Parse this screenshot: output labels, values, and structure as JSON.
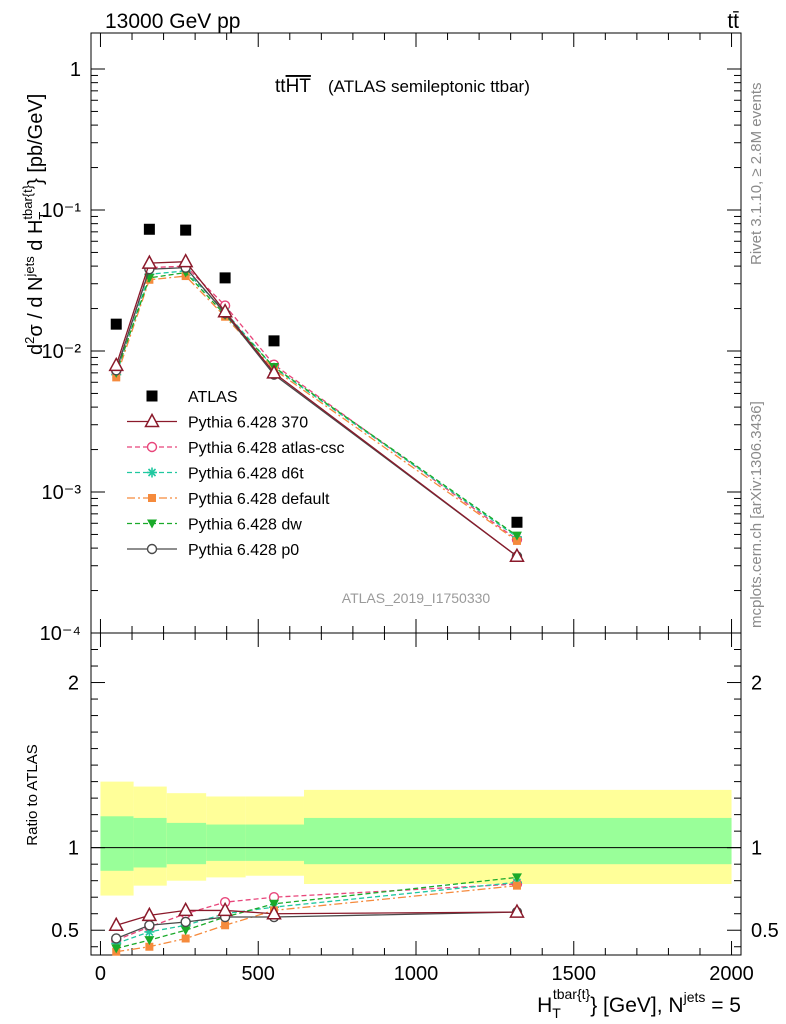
{
  "header": {
    "energy_label": "13000 GeV pp",
    "process_label": "tt̄",
    "title_main": "tt",
    "title_over": "HT",
    "title_paren": "(ATLAS semileptonic ttbar)",
    "analysis_id": "ATLAS_2019_I1750330",
    "side_top": "Rivet 3.1.10, ≥ 2.8M events",
    "side_bottom": "mcplots.cern.ch [arXiv:1306.3436]"
  },
  "colors": {
    "data": "#000000",
    "p370": "#8b1a2b",
    "atlas_csc": "#e8457a",
    "d6t": "#20c8a0",
    "default": "#f58a3c",
    "dw": "#1aaa2a",
    "p0": "#4a4a4a",
    "band_outer": "#ffff99",
    "band_inner": "#99ff99"
  },
  "chart_data": [
    {
      "type": "scatter",
      "panel": "main",
      "yscale": "log",
      "ylabel": "d²σ / d Nʲᵉᵗˢ d H_T^{tbar{t}} [pb/GeV]",
      "xlim": [
        -30,
        2030
      ],
      "ylim": [
        0.0001,
        1.8
      ],
      "yticks": [
        "10⁻⁴",
        "10⁻³",
        "10⁻²",
        "10⁻¹",
        "1"
      ],
      "legend_position": "lower-left",
      "x": [
        50,
        155,
        270,
        395,
        550,
        1320
      ],
      "series": [
        {
          "name": "ATLAS",
          "key": "data",
          "values": [
            0.0155,
            0.073,
            0.072,
            0.033,
            0.0118,
            0.00061
          ]
        },
        {
          "name": "Pythia 6.428 370",
          "key": "p370",
          "values": [
            0.0079,
            0.042,
            0.043,
            0.019,
            0.007,
            0.00035
          ]
        },
        {
          "name": "Pythia 6.428 atlas-csc",
          "key": "atlas_csc",
          "values": [
            0.0072,
            0.039,
            0.04,
            0.021,
            0.008,
            0.00046
          ]
        },
        {
          "name": "Pythia 6.428 d6t",
          "key": "d6t",
          "values": [
            0.0068,
            0.035,
            0.037,
            0.019,
            0.0076,
            0.00048
          ]
        },
        {
          "name": "Pythia 6.428 default",
          "key": "default",
          "values": [
            0.0065,
            0.032,
            0.034,
            0.0175,
            0.0074,
            0.00045
          ]
        },
        {
          "name": "Pythia 6.428 dw",
          "key": "dw",
          "values": [
            0.007,
            0.033,
            0.036,
            0.018,
            0.0077,
            0.00049
          ]
        },
        {
          "name": "Pythia 6.428 p0",
          "key": "p0",
          "values": [
            0.0073,
            0.038,
            0.039,
            0.0185,
            0.0068,
            0.00035
          ]
        }
      ]
    },
    {
      "type": "line",
      "panel": "ratio",
      "ylabel": "Ratio to ATLAS",
      "xlabel": "H_T^{tbar{t}} [GeV], Nʲᵉᵗˢ = 5",
      "xlim": [
        -30,
        2030
      ],
      "ylim": [
        0.35,
        2.3
      ],
      "xticks": [
        0,
        500,
        1000,
        1500,
        2000
      ],
      "yticks": [
        0.5,
        1,
        2
      ],
      "x": [
        50,
        155,
        270,
        395,
        550,
        1320
      ],
      "bands": {
        "edges": [
          0,
          105,
          210,
          335,
          460,
          645,
          2000
        ],
        "outer_lo": [
          0.71,
          0.77,
          0.8,
          0.82,
          0.83,
          0.78
        ],
        "outer_hi": [
          1.4,
          1.37,
          1.33,
          1.31,
          1.31,
          1.35
        ],
        "inner_lo": [
          0.86,
          0.88,
          0.9,
          0.92,
          0.92,
          0.9
        ],
        "inner_hi": [
          1.19,
          1.18,
          1.15,
          1.14,
          1.14,
          1.18
        ]
      },
      "series": [
        {
          "name": "Pythia 6.428 370",
          "key": "p370",
          "values": [
            0.53,
            0.59,
            0.62,
            0.62,
            0.6,
            0.61
          ]
        },
        {
          "name": "Pythia 6.428 atlas-csc",
          "key": "atlas_csc",
          "values": [
            0.44,
            0.52,
            0.6,
            0.67,
            0.7,
            0.78
          ]
        },
        {
          "name": "Pythia 6.428 d6t",
          "key": "d6t",
          "values": [
            0.42,
            0.49,
            0.53,
            0.6,
            0.64,
            0.79
          ]
        },
        {
          "name": "Pythia 6.428 default",
          "key": "default",
          "values": [
            0.37,
            0.4,
            0.45,
            0.53,
            0.62,
            0.77
          ]
        },
        {
          "name": "Pythia 6.428 dw",
          "key": "dw",
          "values": [
            0.39,
            0.44,
            0.5,
            0.58,
            0.66,
            0.82
          ]
        },
        {
          "name": "Pythia 6.428 p0",
          "key": "p0",
          "values": [
            0.45,
            0.53,
            0.55,
            0.58,
            0.58,
            0.61
          ]
        }
      ]
    }
  ]
}
